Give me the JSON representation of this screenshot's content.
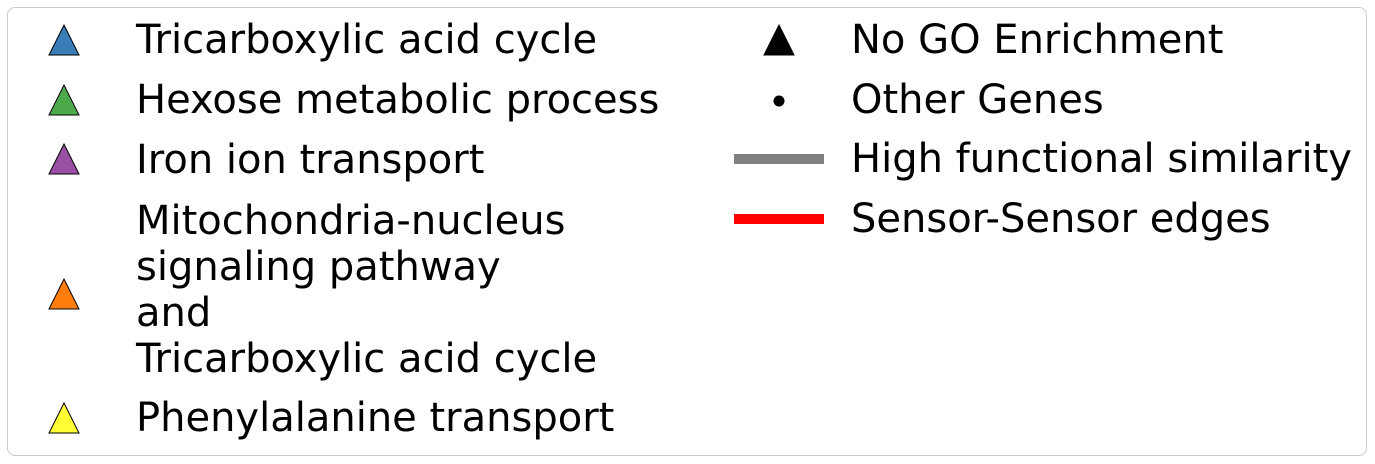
{
  "legend": {
    "entries": [
      {
        "label": "Tricarboxylic acid cycle",
        "marker": "triangle-icon",
        "color": "#3a7cb6"
      },
      {
        "label": "Hexose metabolic process",
        "marker": "triangle-icon",
        "color": "#4caa4a"
      },
      {
        "label": "Iron ion transport",
        "marker": "triangle-icon",
        "color": "#994fa3"
      },
      {
        "label": "Mitochondria-nucleus\nsignaling pathway\nand\nTricarboxylic acid cycle",
        "marker": "triangle-icon",
        "color": "#ff7f0e"
      },
      {
        "label": "Phenylalanine transport",
        "marker": "triangle-icon",
        "color": "#ffff33"
      },
      {
        "label": "No GO Enrichment",
        "marker": "triangle-icon",
        "color": "#000000"
      },
      {
        "label": "Other Genes",
        "marker": "dot-icon",
        "color": "#000000"
      },
      {
        "label": "High functional similarity",
        "marker": "line-icon",
        "color": "#808080"
      },
      {
        "label": "Sensor-Sensor edges",
        "marker": "line-icon",
        "color": "#ff0000"
      }
    ]
  }
}
